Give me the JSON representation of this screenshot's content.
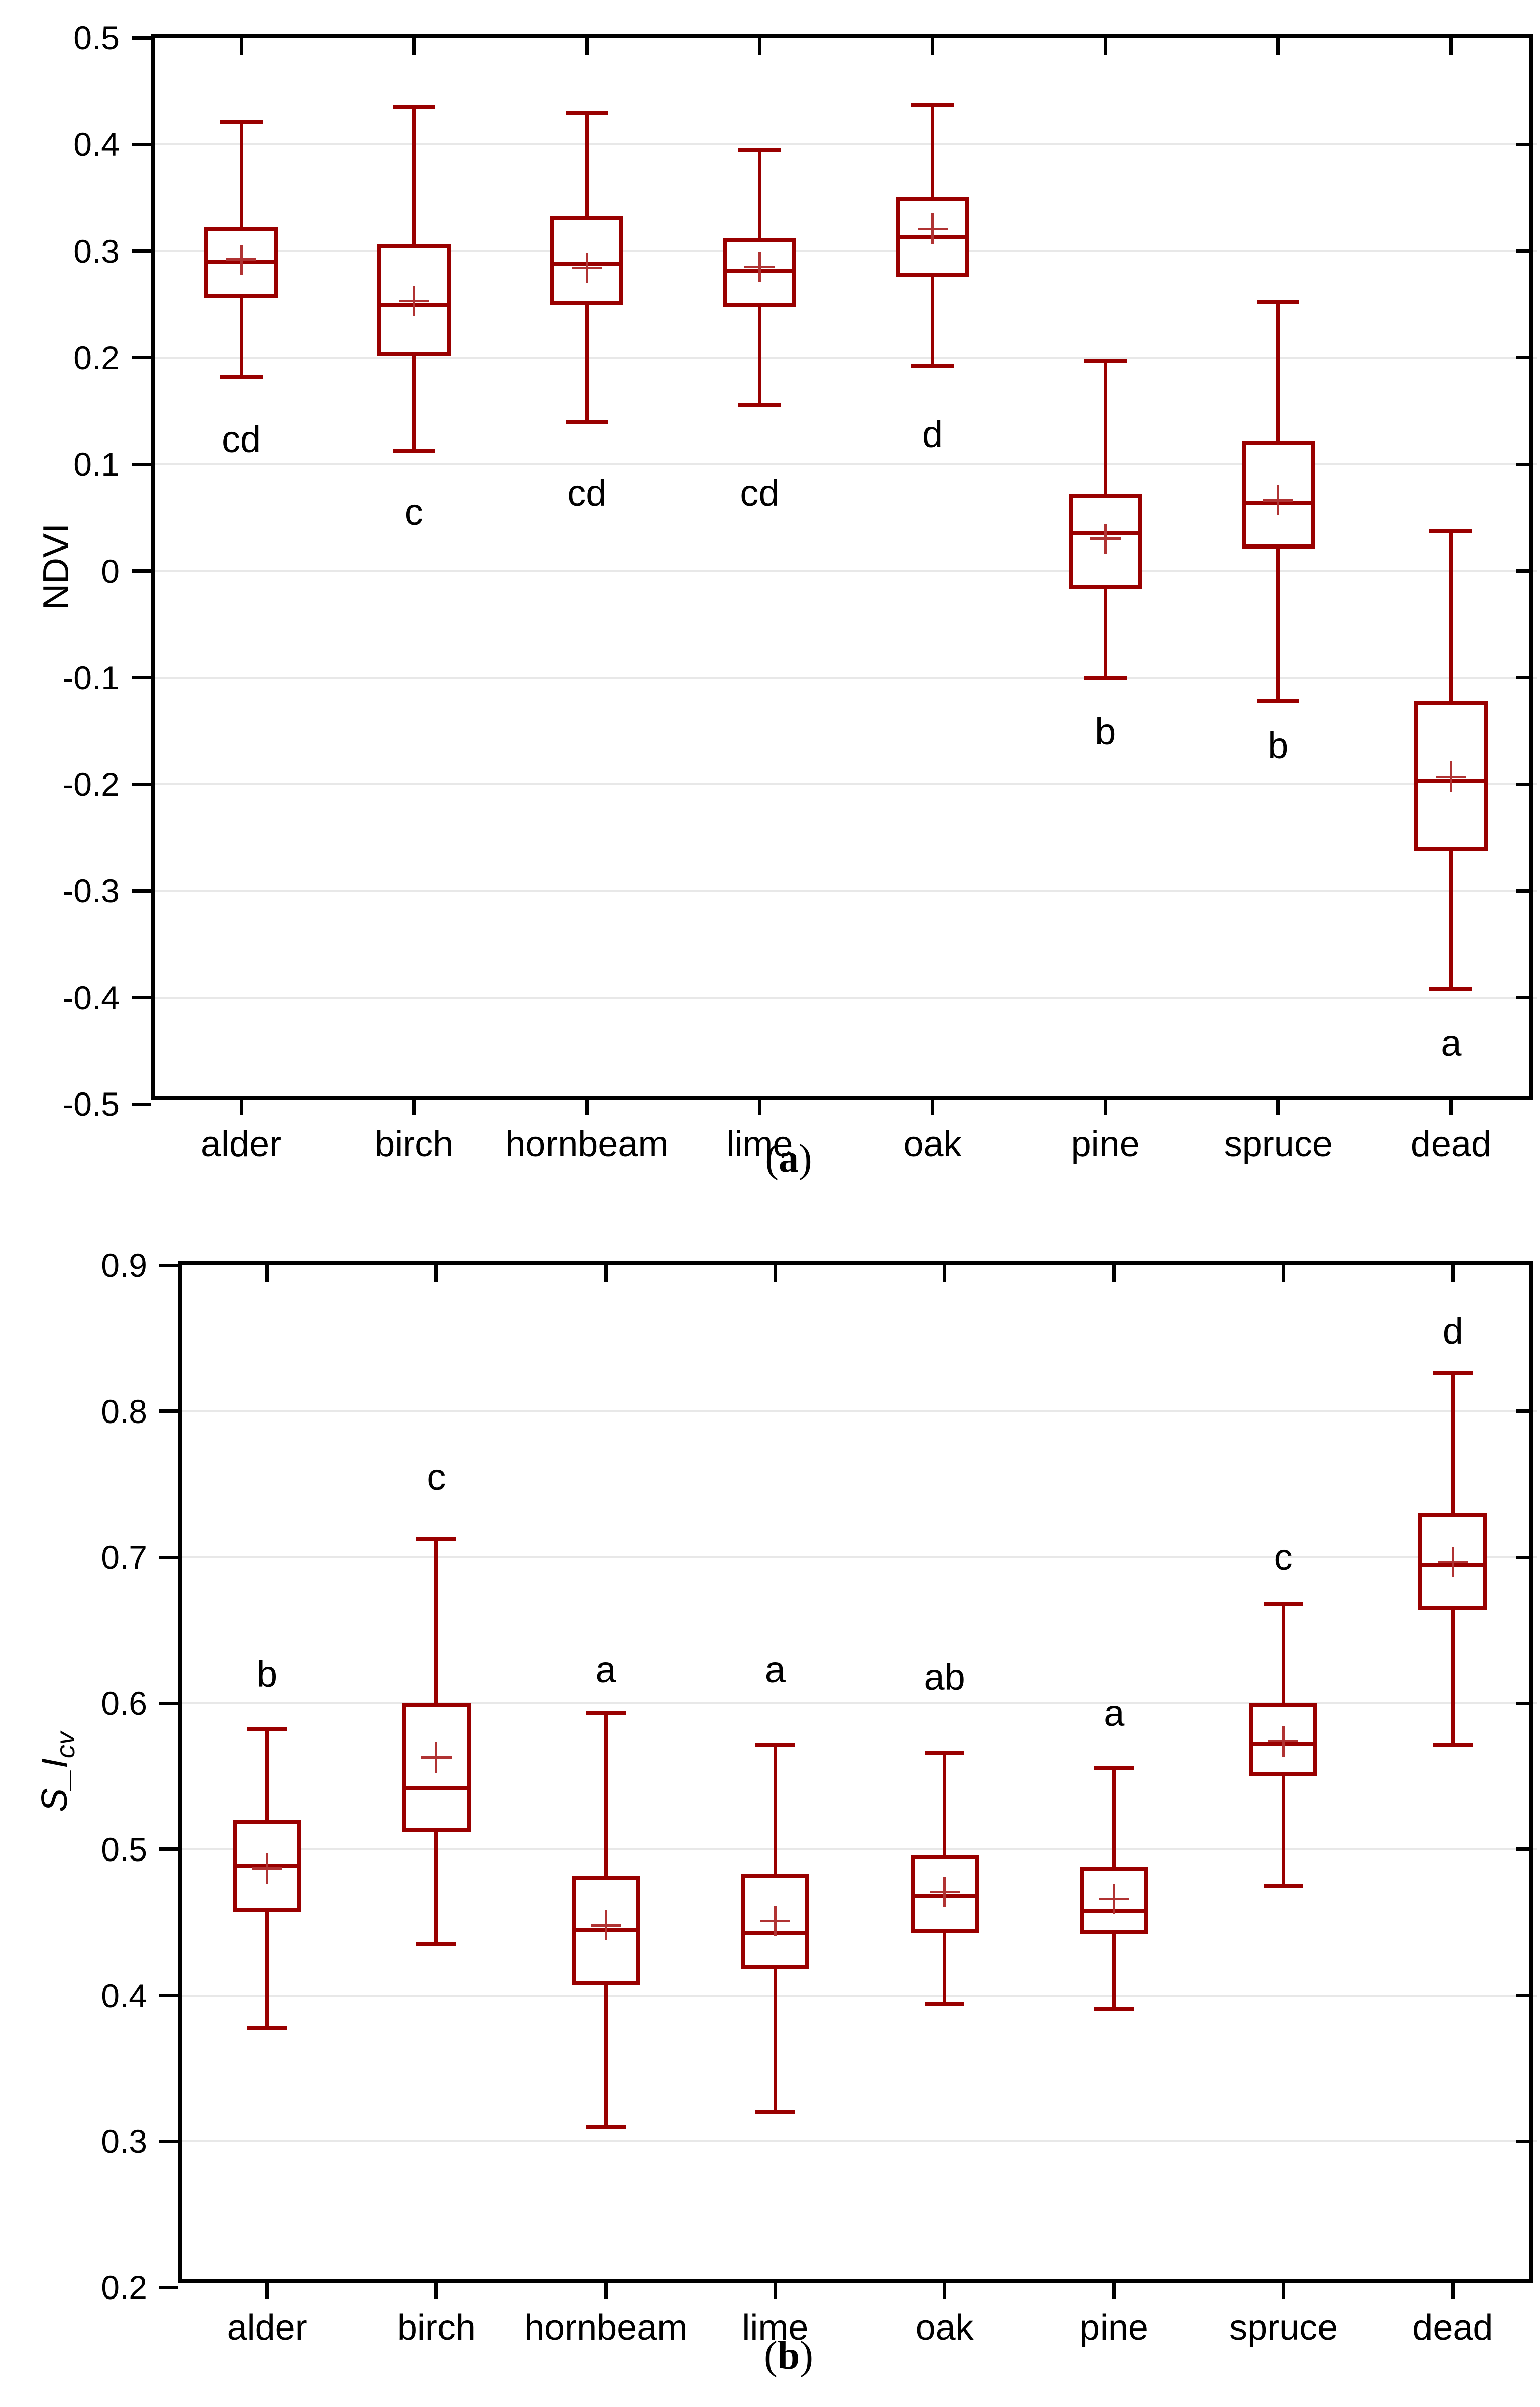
{
  "figure": {
    "background": "#ffffff",
    "box_color": "#990000",
    "mean_color": "#b03333",
    "grid_color": "#e8e8e8",
    "axis_color": "#000000"
  },
  "chart_data": [
    {
      "type": "box",
      "panel": "a",
      "caption_open": "(",
      "caption_letter": "a",
      "caption_close": ")",
      "ylabel": "NDVI",
      "ylim": [
        -0.5,
        0.5
      ],
      "grid": "horizontal",
      "legend_position": "none",
      "yticks": [
        {
          "v": 0.5,
          "label": "0.5"
        },
        {
          "v": 0.4,
          "label": "0.4"
        },
        {
          "v": 0.3,
          "label": "0.3"
        },
        {
          "v": 0.2,
          "label": "0.2"
        },
        {
          "v": 0.1,
          "label": "0.1"
        },
        {
          "v": 0.0,
          "label": "0"
        },
        {
          "v": -0.1,
          "label": "-0.1"
        },
        {
          "v": -0.2,
          "label": "-0.2"
        },
        {
          "v": -0.3,
          "label": "-0.3"
        },
        {
          "v": -0.4,
          "label": "-0.4"
        },
        {
          "v": -0.5,
          "label": "-0.5"
        }
      ],
      "categories": [
        "alder",
        "birch",
        "hornbeam",
        "lime",
        "oak",
        "pine",
        "spruce",
        "dead"
      ],
      "boxes": [
        {
          "category": "alder",
          "whisker_low": 0.182,
          "q1": 0.256,
          "median": 0.29,
          "mean": 0.292,
          "q3": 0.323,
          "whisker_high": 0.421,
          "sig_letter": "cd",
          "sig_letter_y": 0.123
        },
        {
          "category": "birch",
          "whisker_low": 0.113,
          "q1": 0.202,
          "median": 0.249,
          "mean": 0.253,
          "q3": 0.307,
          "whisker_high": 0.435,
          "sig_letter": "c",
          "sig_letter_y": 0.055
        },
        {
          "category": "hornbeam",
          "whisker_low": 0.139,
          "q1": 0.249,
          "median": 0.288,
          "mean": 0.284,
          "q3": 0.333,
          "whisker_high": 0.43,
          "sig_letter": "cd",
          "sig_letter_y": 0.073
        },
        {
          "category": "lime",
          "whisker_low": 0.155,
          "q1": 0.247,
          "median": 0.281,
          "mean": 0.285,
          "q3": 0.312,
          "whisker_high": 0.395,
          "sig_letter": "cd",
          "sig_letter_y": 0.073
        },
        {
          "category": "oak",
          "whisker_low": 0.192,
          "q1": 0.276,
          "median": 0.313,
          "mean": 0.321,
          "q3": 0.35,
          "whisker_high": 0.437,
          "sig_letter": "d",
          "sig_letter_y": 0.128
        },
        {
          "category": "pine",
          "whisker_low": -0.1,
          "q1": -0.017,
          "median": 0.035,
          "mean": 0.03,
          "q3": 0.072,
          "whisker_high": 0.197,
          "sig_letter": "b",
          "sig_letter_y": -0.151
        },
        {
          "category": "spruce",
          "whisker_low": -0.122,
          "q1": 0.021,
          "median": 0.064,
          "mean": 0.066,
          "q3": 0.122,
          "whisker_high": 0.252,
          "sig_letter": "b",
          "sig_letter_y": -0.164
        },
        {
          "category": "dead",
          "whisker_low": -0.392,
          "q1": -0.263,
          "median": -0.197,
          "mean": -0.193,
          "q3": -0.122,
          "whisker_high": 0.037,
          "sig_letter": "a",
          "sig_letter_y": -0.443
        }
      ]
    },
    {
      "type": "box",
      "panel": "b",
      "caption_open": "(",
      "caption_letter": "b",
      "caption_close": ")",
      "ylabel_main": "S_I",
      "ylabel_sub": "cv",
      "ylim": [
        0.2,
        0.9
      ],
      "grid": "horizontal",
      "legend_position": "none",
      "yticks": [
        {
          "v": 0.9,
          "label": "0.9"
        },
        {
          "v": 0.8,
          "label": "0.8"
        },
        {
          "v": 0.7,
          "label": "0.7"
        },
        {
          "v": 0.6,
          "label": "0.6"
        },
        {
          "v": 0.5,
          "label": "0.5"
        },
        {
          "v": 0.4,
          "label": "0.4"
        },
        {
          "v": 0.3,
          "label": "0.3"
        },
        {
          "v": 0.2,
          "label": "0.2"
        }
      ],
      "categories": [
        "alder",
        "birch",
        "hornbeam",
        "lime",
        "oak",
        "pine",
        "spruce",
        "dead"
      ],
      "boxes": [
        {
          "category": "alder",
          "whisker_low": 0.378,
          "q1": 0.457,
          "median": 0.489,
          "mean": 0.487,
          "q3": 0.52,
          "whisker_high": 0.582,
          "sig_letter": "b",
          "sig_letter_y": 0.62
        },
        {
          "category": "birch",
          "whisker_low": 0.435,
          "q1": 0.512,
          "median": 0.542,
          "mean": 0.563,
          "q3": 0.6,
          "whisker_high": 0.713,
          "sig_letter": "c",
          "sig_letter_y": 0.755
        },
        {
          "category": "hornbeam",
          "whisker_low": 0.31,
          "q1": 0.407,
          "median": 0.445,
          "mean": 0.448,
          "q3": 0.482,
          "whisker_high": 0.593,
          "sig_letter": "a",
          "sig_letter_y": 0.623
        },
        {
          "category": "lime",
          "whisker_low": 0.32,
          "q1": 0.418,
          "median": 0.443,
          "mean": 0.451,
          "q3": 0.483,
          "whisker_high": 0.571,
          "sig_letter": "a",
          "sig_letter_y": 0.623
        },
        {
          "category": "oak",
          "whisker_low": 0.394,
          "q1": 0.443,
          "median": 0.468,
          "mean": 0.471,
          "q3": 0.496,
          "whisker_high": 0.566,
          "sig_letter": "ab",
          "sig_letter_y": 0.618
        },
        {
          "category": "pine",
          "whisker_low": 0.391,
          "q1": 0.442,
          "median": 0.458,
          "mean": 0.466,
          "q3": 0.488,
          "whisker_high": 0.556,
          "sig_letter": "a",
          "sig_letter_y": 0.593
        },
        {
          "category": "spruce",
          "whisker_low": 0.475,
          "q1": 0.55,
          "median": 0.572,
          "mean": 0.574,
          "q3": 0.6,
          "whisker_high": 0.668,
          "sig_letter": "c",
          "sig_letter_y": 0.7
        },
        {
          "category": "dead",
          "whisker_low": 0.571,
          "q1": 0.664,
          "median": 0.695,
          "mean": 0.697,
          "q3": 0.73,
          "whisker_high": 0.826,
          "sig_letter": "d",
          "sig_letter_y": 0.855
        }
      ]
    }
  ]
}
